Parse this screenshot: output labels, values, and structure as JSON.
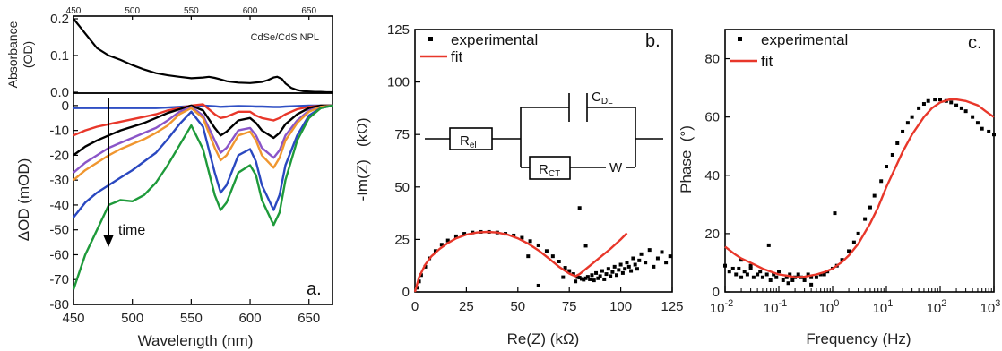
{
  "chart_data": [
    {
      "panel": "a",
      "type": "line",
      "panel_label": "a.",
      "top": {
        "annotation": "CdSe/CdS NPL",
        "ylabel": "Absorbance (OD)",
        "ylabel_lines": [
          "Absorbance",
          "(OD)"
        ],
        "ylim": [
          0,
          0.2
        ],
        "yticks": [
          0.0,
          0.1,
          0.2
        ],
        "ytick_labels": [
          "0.0",
          "0.1",
          "0.2"
        ],
        "xlim": [
          450,
          670
        ],
        "top_xticks": [
          450,
          500,
          550,
          600,
          650
        ],
        "top_xtick_labels": [
          "450",
          "500",
          "550",
          "600",
          "650"
        ],
        "series": [
          {
            "color": "#000000",
            "x": [
              450,
              455,
              460,
              470,
              480,
              490,
              500,
              510,
              520,
              530,
              540,
              550,
              560,
              565,
              570,
              575,
              580,
              590,
              600,
              610,
              615,
              620,
              623,
              627,
              630,
              635,
              640,
              645,
              650,
              655,
              660,
              665,
              670
            ],
            "y": [
              0.2,
              0.18,
              0.16,
              0.12,
              0.1,
              0.088,
              0.074,
              0.062,
              0.052,
              0.046,
              0.042,
              0.038,
              0.04,
              0.042,
              0.039,
              0.035,
              0.03,
              0.026,
              0.025,
              0.028,
              0.033,
              0.04,
              0.042,
              0.036,
              0.024,
              0.012,
              0.006,
              0.003,
              0.002,
              0.001,
              0.001,
              0.0,
              0.0
            ]
          }
        ]
      },
      "bottom": {
        "xlabel": "Wavelength (nm)",
        "ylabel": "ΔOD (mOD)",
        "xlim": [
          450,
          670
        ],
        "ylim": [
          -80,
          5
        ],
        "xticks": [
          450,
          500,
          550,
          600,
          650
        ],
        "xtick_labels": [
          "450",
          "500",
          "550",
          "600",
          "650"
        ],
        "yticks": [
          0,
          -10,
          -20,
          -30,
          -40,
          -50,
          -60,
          -70,
          -80
        ],
        "ytick_labels": [
          "0",
          "-10",
          "-20",
          "-30",
          "-40",
          "-50",
          "-60",
          "-70",
          "-80"
        ],
        "arrow_label": "time",
        "x": [
          450,
          460,
          470,
          480,
          490,
          500,
          510,
          520,
          530,
          540,
          550,
          560,
          570,
          575,
          580,
          590,
          600,
          605,
          610,
          620,
          625,
          630,
          640,
          650,
          660,
          670
        ],
        "series": [
          {
            "color": "#2f4fc4",
            "y": [
              -1.0,
              -1.0,
              -1.0,
              -1.0,
              -1.0,
              -1.0,
              -1.0,
              -1.0,
              -0.8,
              -0.5,
              -0.2,
              0.0,
              -0.3,
              -0.5,
              -0.4,
              -0.2,
              -0.3,
              -0.4,
              -0.4,
              -0.6,
              -0.6,
              -0.4,
              -0.2,
              0.0,
              0.0,
              0.0
            ]
          },
          {
            "color": "#e8372a",
            "y": [
              -12,
              -10,
              -8.5,
              -7.5,
              -6.5,
              -5.5,
              -4.5,
              -3.5,
              -2.0,
              -1.0,
              0.0,
              0.5,
              -3.5,
              -5,
              -4.5,
              -2.5,
              -2.5,
              -4,
              -5,
              -6,
              -5,
              -3.5,
              -1.5,
              -0.5,
              0.0,
              0.0
            ]
          },
          {
            "color": "#000000",
            "y": [
              -20,
              -16.5,
              -14,
              -12,
              -10,
              -8.5,
              -7,
              -5,
              -3,
              -1.5,
              0.0,
              -2,
              -9,
              -12,
              -10.5,
              -6,
              -5,
              -7,
              -10,
              -13,
              -11,
              -7.5,
              -3.5,
              -1,
              0.0,
              0.0
            ]
          },
          {
            "color": "#8a55c8",
            "y": [
              -27,
              -23,
              -20,
              -17,
              -15,
              -13,
              -11,
              -9,
              -6,
              -2.5,
              -0.5,
              -4,
              -14,
              -19,
              -17,
              -10,
              -9,
              -12,
              -17,
              -21,
              -18,
              -12,
              -6,
              -2,
              -0.5,
              0.0
            ]
          },
          {
            "color": "#f0962f",
            "y": [
              -30,
              -26,
              -23,
              -20,
              -17.5,
              -15.5,
              -13.5,
              -11,
              -8,
              -3.5,
              -1,
              -5,
              -17,
              -22,
              -20,
              -12,
              -10.5,
              -14,
              -20,
              -25,
              -21,
              -14,
              -7,
              -2.5,
              -0.5,
              0.0
            ]
          },
          {
            "color": "#2a48c0",
            "y": [
              -45,
              -39,
              -35,
              -32,
              -29,
              -26,
              -22.5,
              -19,
              -13.5,
              -7.5,
              -2.5,
              -8.5,
              -27,
              -35,
              -32,
              -20,
              -17.5,
              -22.5,
              -32,
              -42,
              -36,
              -24,
              -12,
              -4,
              -1,
              0.0
            ]
          },
          {
            "color": "#1e9a3a",
            "y": [
              -74,
              -60,
              -50,
              -40,
              -38,
              -38.5,
              -36,
              -31,
              -24,
              -16,
              -8,
              -17.5,
              -36,
              -42,
              -39,
              -27,
              -24,
              -28,
              -38,
              -48,
              -43,
              -30,
              -14,
              -5,
              -1,
              0.0
            ]
          }
        ]
      }
    },
    {
      "panel": "b",
      "type": "scatter",
      "panel_label": "b.",
      "xlabel": "Re(Z) (kΩ)",
      "ylabel": "-Im(Z)   (kΩ)",
      "xlim": [
        0,
        125
      ],
      "ylim": [
        0,
        125
      ],
      "xticks": [
        0,
        25,
        50,
        75,
        100,
        125
      ],
      "xtick_labels": [
        "0",
        "25",
        "50",
        "75",
        "100",
        "125"
      ],
      "yticks": [
        0,
        25,
        50,
        75,
        100,
        125
      ],
      "ytick_labels": [
        "0",
        "25",
        "50",
        "75",
        "100",
        "125"
      ],
      "legend": [
        {
          "label": "experimental",
          "style": "marker",
          "color": "#000000"
        },
        {
          "label": "fit",
          "style": "line",
          "color": "#e8372a"
        }
      ],
      "circuit": {
        "R_el": {
          "main": "R",
          "sub": "el"
        },
        "C_DL": {
          "main": "C",
          "sub": "DL"
        },
        "R_CT": {
          "main": "R",
          "sub": "CT"
        },
        "W": "W"
      },
      "experimental_x": [
        1,
        2,
        3,
        5,
        7,
        10,
        13,
        16,
        20,
        24,
        28,
        32,
        36,
        40,
        44,
        48,
        52,
        56,
        60,
        64,
        67,
        70,
        73,
        75,
        77,
        79,
        80,
        81,
        82,
        83,
        84,
        85,
        86,
        87,
        88,
        89,
        90,
        91,
        92,
        93,
        94,
        95,
        96,
        97,
        98,
        99,
        100,
        101,
        102,
        103,
        104,
        105,
        106,
        107,
        108,
        109,
        110,
        112,
        114,
        116,
        118,
        120,
        122,
        124,
        55,
        80,
        83,
        72,
        60,
        78
      ],
      "experimental_y": [
        2,
        5,
        8,
        12,
        16,
        19.5,
        22.5,
        24.5,
        26.5,
        27.7,
        28.3,
        28.6,
        28.6,
        28.3,
        27.7,
        26.9,
        25.8,
        24.2,
        22.2,
        19.5,
        17,
        14.5,
        11.5,
        10,
        8.5,
        7,
        6.8,
        6.2,
        5.8,
        6.5,
        7.2,
        6,
        8,
        5.5,
        9,
        6.5,
        7.5,
        10,
        6,
        8.5,
        11,
        7.5,
        9.5,
        12,
        8,
        10.5,
        13,
        9,
        11,
        14,
        12,
        10,
        16,
        13,
        11,
        15,
        18,
        14,
        20,
        12,
        16,
        19,
        14,
        17,
        17,
        40,
        22,
        7,
        3,
        5
      ],
      "fit_x": [
        0,
        2,
        5,
        8,
        12,
        16,
        20,
        25,
        30,
        35,
        40,
        45,
        50,
        55,
        60,
        65,
        70,
        75,
        78,
        80,
        85,
        90,
        95,
        100,
        103
      ],
      "fit_y": [
        0,
        7,
        13,
        17,
        20.5,
        23.3,
        25.5,
        27.3,
        28.3,
        28.6,
        28.3,
        27.3,
        25.5,
        23,
        19.8,
        16,
        12,
        8.7,
        7.5,
        8.5,
        12.5,
        16.5,
        20.5,
        25,
        28
      ]
    },
    {
      "panel": "c",
      "type": "scatter",
      "panel_label": "c.",
      "xlabel": "Frequency (Hz)",
      "ylabel": "Phase  (°)",
      "xscale": "log",
      "xlim": [
        0.01,
        1000
      ],
      "ylim": [
        0,
        90
      ],
      "xticks": [
        0.01,
        0.1,
        1,
        10,
        100,
        1000
      ],
      "xtick_labels": [
        {
          "base": "10",
          "exp": "-2"
        },
        {
          "base": "10",
          "exp": "-1"
        },
        {
          "base": "10",
          "exp": "0"
        },
        {
          "base": "10",
          "exp": "1"
        },
        {
          "base": "10",
          "exp": "2"
        },
        {
          "base": "10",
          "exp": "3"
        }
      ],
      "yticks": [
        0,
        20,
        40,
        60,
        80
      ],
      "ytick_labels": [
        "0",
        "20",
        "40",
        "60",
        "80"
      ],
      "legend": [
        {
          "label": "experimental",
          "style": "marker",
          "color": "#000000"
        },
        {
          "label": "fit",
          "style": "line",
          "color": "#e8372a"
        }
      ],
      "experimental_x": [
        0.01,
        0.012,
        0.014,
        0.016,
        0.018,
        0.02,
        0.023,
        0.026,
        0.03,
        0.034,
        0.04,
        0.045,
        0.05,
        0.06,
        0.07,
        0.08,
        0.09,
        0.1,
        0.12,
        0.14,
        0.16,
        0.18,
        0.2,
        0.23,
        0.26,
        0.3,
        0.35,
        0.4,
        0.5,
        0.6,
        0.7,
        0.8,
        1.0,
        1.2,
        1.5,
        2,
        2.5,
        3,
        4,
        5,
        6,
        8,
        10,
        13,
        16,
        20,
        25,
        30,
        40,
        50,
        60,
        80,
        100,
        130,
        160,
        200,
        250,
        300,
        400,
        500,
        600,
        800,
        1000,
        0.065,
        1.1,
        0.4,
        0.02,
        0.03,
        0.15
      ],
      "experimental_y": [
        9,
        7,
        8,
        6,
        8,
        5,
        7,
        6,
        8,
        5,
        6,
        7,
        5,
        6,
        4,
        6,
        5,
        7,
        4,
        5,
        6,
        4,
        5,
        6,
        5,
        4,
        6,
        5,
        5,
        6,
        6,
        7,
        8,
        9,
        11,
        14,
        17,
        20,
        25,
        29,
        33,
        38,
        43,
        47,
        51,
        55,
        58,
        60,
        63,
        64.5,
        65.5,
        66,
        66,
        65.5,
        65,
        64,
        63,
        62,
        60,
        58,
        56,
        55,
        54,
        16,
        27,
        2.5,
        11,
        9,
        3
      ],
      "fit_x": [
        0.01,
        0.015,
        0.02,
        0.03,
        0.05,
        0.07,
        0.1,
        0.15,
        0.2,
        0.3,
        0.5,
        0.7,
        1,
        1.5,
        2,
        3,
        5,
        7,
        10,
        15,
        20,
        30,
        50,
        70,
        100,
        150,
        200,
        300,
        500,
        700,
        1000
      ],
      "fit_y": [
        15.5,
        13,
        11.5,
        10,
        8,
        7,
        6,
        5.5,
        5,
        5.2,
        6,
        6.8,
        8,
        10.3,
        12.5,
        16.5,
        23.5,
        29,
        36,
        43,
        48,
        54,
        60,
        63,
        65,
        66,
        66,
        65.5,
        64,
        62,
        60
      ]
    }
  ]
}
